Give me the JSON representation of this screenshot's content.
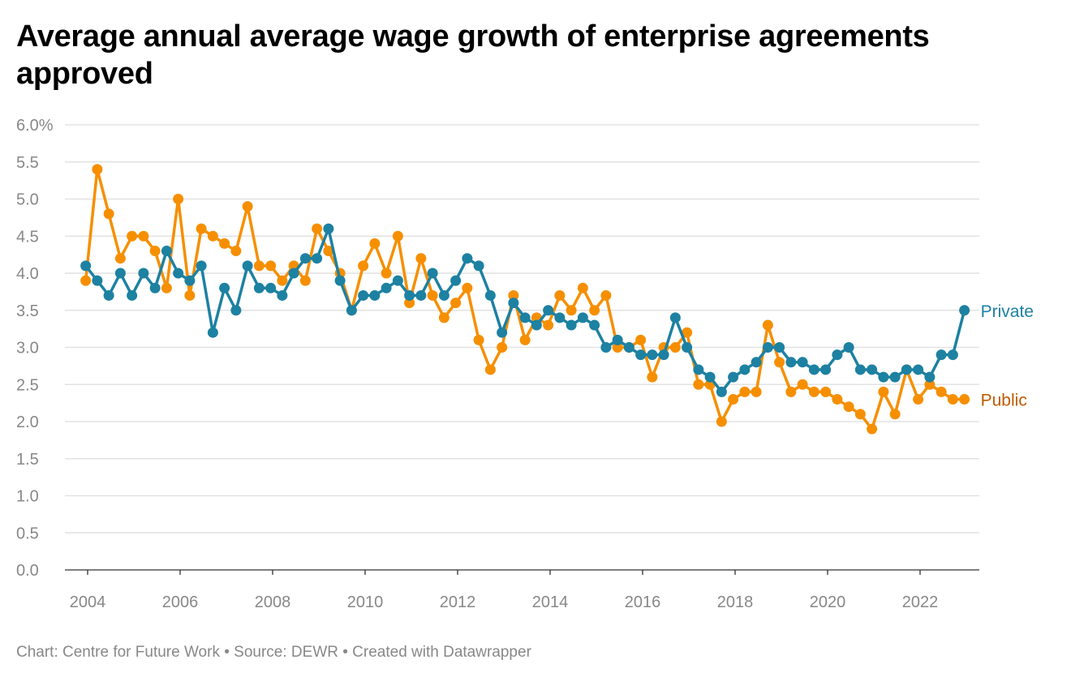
{
  "chart_data": {
    "type": "line",
    "title": "Average annual average wage growth of enterprise agreements approved",
    "footer": "Chart: Centre for Future Work • Source: DEWR • Created with Datawrapper",
    "ylim": [
      0,
      6
    ],
    "yticks": [
      "0.0",
      "0.5",
      "1.0",
      "1.5",
      "2.0",
      "2.5",
      "3.0",
      "3.5",
      "4.0",
      "4.5",
      "5.0",
      "5.5",
      "6.0%"
    ],
    "xticks": [
      "2004",
      "2006",
      "2008",
      "2010",
      "2012",
      "2014",
      "2016",
      "2018",
      "2020",
      "2022"
    ],
    "grid": true,
    "legend": "direct labels at line ends",
    "x": [
      "2003-12",
      "2004-03",
      "2004-06",
      "2004-09",
      "2004-12",
      "2005-03",
      "2005-06",
      "2005-09",
      "2005-12",
      "2006-03",
      "2006-06",
      "2006-09",
      "2006-12",
      "2007-03",
      "2007-06",
      "2007-09",
      "2007-12",
      "2008-03",
      "2008-06",
      "2008-09",
      "2008-12",
      "2009-03",
      "2009-06",
      "2009-09",
      "2009-12",
      "2010-03",
      "2010-06",
      "2010-09",
      "2010-12",
      "2011-03",
      "2011-06",
      "2011-09",
      "2011-12",
      "2012-03",
      "2012-06",
      "2012-09",
      "2012-12",
      "2013-03",
      "2013-06",
      "2013-09",
      "2013-12",
      "2014-03",
      "2014-06",
      "2014-09",
      "2014-12",
      "2015-03",
      "2015-06",
      "2015-09",
      "2015-12",
      "2016-03",
      "2016-06",
      "2016-09",
      "2016-12",
      "2017-03",
      "2017-06",
      "2017-09",
      "2017-12",
      "2018-03",
      "2018-06",
      "2018-09",
      "2018-12",
      "2019-03",
      "2019-06",
      "2019-09",
      "2019-12",
      "2020-03",
      "2020-06",
      "2020-09",
      "2020-12",
      "2021-03",
      "2021-06",
      "2021-09",
      "2021-12",
      "2022-03",
      "2022-06",
      "2022-09",
      "2022-12"
    ],
    "series": [
      {
        "name": "Private",
        "color": "#1d81a2",
        "label_color": "#1d81a2",
        "values": [
          4.1,
          3.9,
          3.7,
          4.0,
          3.7,
          4.0,
          3.8,
          4.3,
          4.0,
          3.9,
          4.1,
          3.2,
          3.8,
          3.5,
          4.1,
          3.8,
          3.8,
          3.7,
          4.0,
          4.2,
          4.2,
          4.6,
          3.9,
          3.5,
          3.7,
          3.7,
          3.8,
          3.9,
          3.7,
          3.7,
          4.0,
          3.7,
          3.9,
          4.2,
          4.1,
          3.7,
          3.2,
          3.6,
          3.4,
          3.3,
          3.5,
          3.4,
          3.3,
          3.4,
          3.3,
          3.0,
          3.1,
          3.0,
          2.9,
          2.9,
          2.9,
          3.4,
          3.0,
          2.7,
          2.6,
          2.4,
          2.6,
          2.7,
          2.8,
          3.0,
          3.0,
          2.8,
          2.8,
          2.7,
          2.7,
          2.9,
          3.0,
          2.7,
          2.7,
          2.6,
          2.6,
          2.7,
          2.7,
          2.6,
          2.9,
          2.9,
          3.5
        ]
      },
      {
        "name": "Public",
        "color": "#f68f00",
        "label_color": "#c05b00",
        "values": [
          3.9,
          5.4,
          4.8,
          4.2,
          4.5,
          4.5,
          4.3,
          3.8,
          5.0,
          3.7,
          4.6,
          4.5,
          4.4,
          4.3,
          4.9,
          4.1,
          4.1,
          3.9,
          4.1,
          3.9,
          4.6,
          4.3,
          4.0,
          3.5,
          4.1,
          4.4,
          4.0,
          4.5,
          3.6,
          4.2,
          3.7,
          3.4,
          3.6,
          3.8,
          3.1,
          2.7,
          3.0,
          3.7,
          3.1,
          3.4,
          3.3,
          3.7,
          3.5,
          3.8,
          3.5,
          3.7,
          3.0,
          3.0,
          3.1,
          2.6,
          3.0,
          3.0,
          3.2,
          2.5,
          2.5,
          2.0,
          2.3,
          2.4,
          2.4,
          3.3,
          2.8,
          2.4,
          2.5,
          2.4,
          2.4,
          2.3,
          2.2,
          2.1,
          1.9,
          2.4,
          2.1,
          2.7,
          2.3,
          2.5,
          2.4,
          2.3,
          2.3
        ]
      }
    ]
  }
}
